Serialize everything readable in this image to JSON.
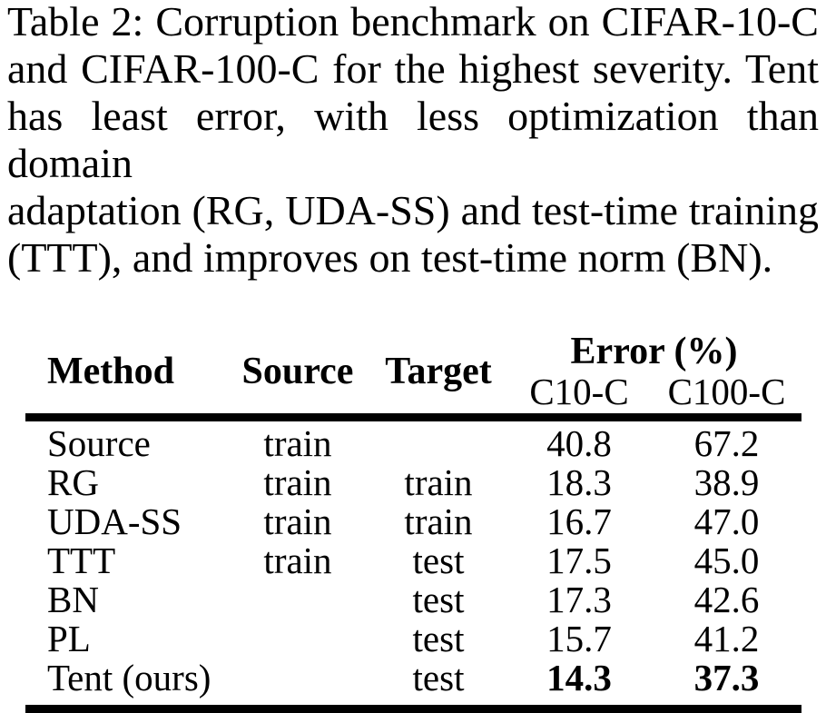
{
  "caption": {
    "lines": [
      "Table 2: Corruption benchmark on CIFAR-10-C",
      "and CIFAR-100-C for the highest severity. Tent",
      "has least error, with less optimization than domain",
      "adaptation (RG, UDA-SS) and test-time training",
      "(TTT), and improves on test-time norm (BN)."
    ]
  },
  "table": {
    "columns": {
      "method": "Method",
      "source": "Source",
      "target": "Target"
    },
    "error_group_label": "Error (%)",
    "sub_columns": {
      "c10": "C10-C",
      "c100": "C100-C"
    },
    "rows": [
      {
        "method": "Source",
        "source": "train",
        "target": "",
        "c10": "40.8",
        "c100": "67.2",
        "bold_values": false
      },
      {
        "method": "RG",
        "source": "train",
        "target": "train",
        "c10": "18.3",
        "c100": "38.9",
        "bold_values": false
      },
      {
        "method": "UDA-SS",
        "source": "train",
        "target": "train",
        "c10": "16.7",
        "c100": "47.0",
        "bold_values": false
      },
      {
        "method": "TTT",
        "source": "train",
        "target": "test",
        "c10": "17.5",
        "c100": "45.0",
        "bold_values": false
      },
      {
        "method": "BN",
        "source": "",
        "target": "test",
        "c10": "17.3",
        "c100": "42.6",
        "bold_values": false
      },
      {
        "method": "PL",
        "source": "",
        "target": "test",
        "c10": "15.7",
        "c100": "41.2",
        "bold_values": false
      },
      {
        "method": "Tent (ours)",
        "source": "",
        "target": "test",
        "c10": "14.3",
        "c100": "37.3",
        "bold_values": true
      }
    ]
  },
  "colors": {
    "text": "#000000",
    "background": "#ffffff",
    "rule": "#000000"
  }
}
